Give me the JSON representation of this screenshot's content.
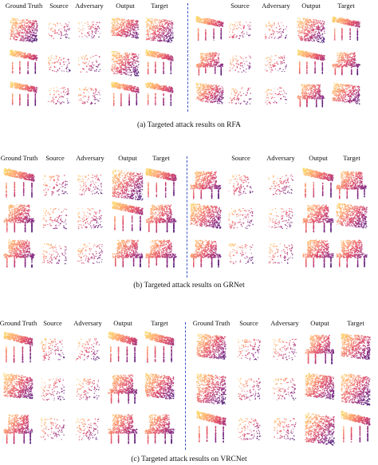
{
  "panels": [
    {
      "headers_left": [
        "Ground Truth",
        "Source",
        "Adversary",
        "Output",
        "Target"
      ],
      "headers_right": [
        "Source",
        "Adversary",
        "Output",
        "Target"
      ],
      "caption": "(a)  Targeted attack results on RFA"
    },
    {
      "headers_left": [
        "Ground Truth",
        "Source",
        "Adversary",
        "Output",
        "Target"
      ],
      "headers_right": [
        "Source",
        "Adversary",
        "Output",
        "Target"
      ],
      "caption": "(b)  Targeted attack results on GRNet"
    },
    {
      "headers_left": [
        "Ground Truth",
        "Source",
        "Adversary",
        "Output",
        "Target"
      ],
      "headers_right": [
        "Ground Truth",
        "Source",
        "Adversary",
        "Output",
        "Target"
      ],
      "caption": "(c)  Targeted attack results on VRCNet"
    }
  ],
  "colors": {
    "divider": "#3a56c8",
    "point_palette": [
      "#3b0f70",
      "#8c2981",
      "#de4968",
      "#fe9f6d",
      "#fcd76b"
    ]
  }
}
